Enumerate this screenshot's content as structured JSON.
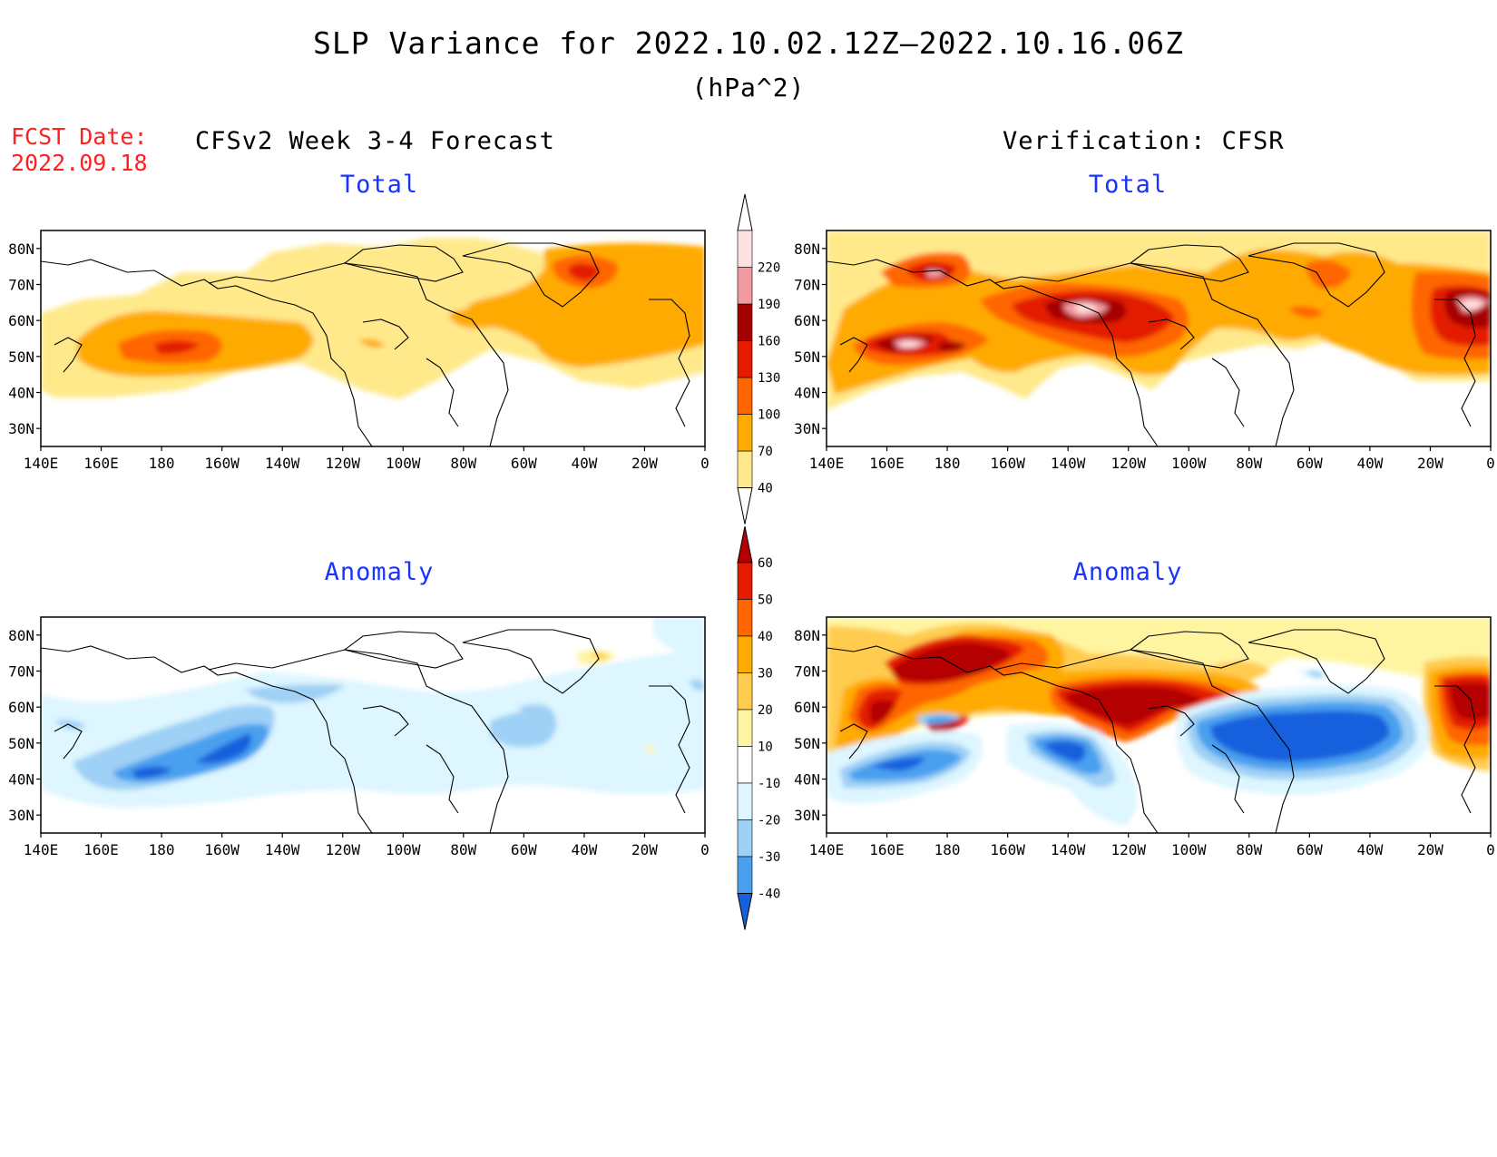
{
  "title": "SLP Variance for 2022.10.02.12Z—2022.10.16.06Z",
  "units": "(hPa^2)",
  "fcst_label": "FCST Date:",
  "fcst_date": "2022.09.18",
  "left_header": "CFSv2 Week 3-4 Forecast",
  "right_header": "Verification: CFSR",
  "panels": {
    "fcst_total": {
      "title": "Total"
    },
    "verif_total": {
      "title": "Total"
    },
    "fcst_anom": {
      "title": "Anomaly"
    },
    "verif_anom": {
      "title": "Anomaly"
    }
  },
  "axes": {
    "lat_labels": [
      "80N",
      "70N",
      "60N",
      "50N",
      "40N",
      "30N"
    ],
    "lon_labels": [
      "140E",
      "160E",
      "180",
      "160W",
      "140W",
      "120W",
      "100W",
      "80W",
      "60W",
      "40W",
      "20W",
      "0"
    ],
    "lat_range": [
      25,
      85
    ],
    "lon_range_east": [
      140,
      360
    ]
  },
  "colorbars": {
    "total": {
      "levels": [
        "40",
        "70",
        "100",
        "130",
        "160",
        "190",
        "220"
      ],
      "colors": [
        "#ffe98a",
        "#ffaa00",
        "#ff6600",
        "#e31c00",
        "#a50000",
        "#f29aa0",
        "#fde0e0"
      ]
    },
    "anomaly": {
      "levels": [
        "60",
        "50",
        "40",
        "30",
        "20",
        "10",
        "-10",
        "-20",
        "-30",
        "-40"
      ],
      "colors": [
        "#b40000",
        "#e31c00",
        "#ff6600",
        "#ffaa00",
        "#ffcc50",
        "#fff5a0",
        "#ffffff",
        "#ddf6ff",
        "#9fd0f5",
        "#4aa0ef",
        "#1560dd"
      ]
    }
  }
}
